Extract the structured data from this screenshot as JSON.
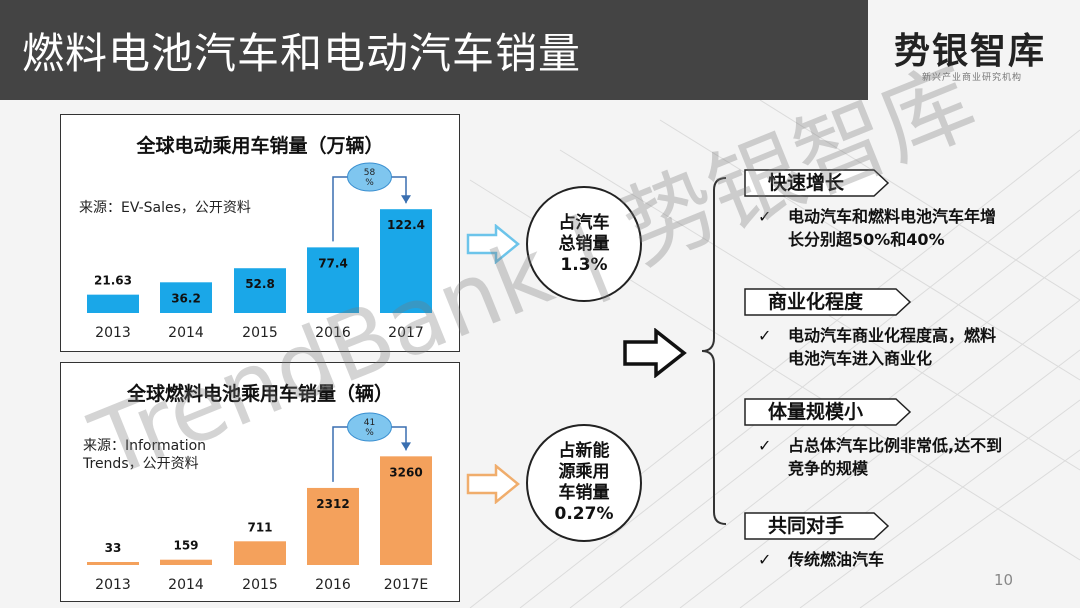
{
  "header": {
    "title": "燃料电池汽车和电动汽车销量",
    "logo_main": "势银智库",
    "logo_sub": "新兴产业商业研究机构"
  },
  "charts": {
    "ev": {
      "title": "全球电动乘用车销量（万辆）",
      "source": "来源：EV-Sales，公开资料",
      "growth_badge": "58\n%"
    },
    "fc": {
      "title": "全球燃料电池乘用车销量（辆）",
      "source": "来源：Information\nTrends，公开资料",
      "growth_badge": "41\n%"
    }
  },
  "chart_data": [
    {
      "type": "bar",
      "title": "全球电动乘用车销量（万辆）",
      "categories": [
        "2013",
        "2014",
        "2015",
        "2016",
        "2017"
      ],
      "values": [
        21.63,
        36.2,
        52.8,
        77.4,
        122.4
      ],
      "labels": [
        "21.63",
        "36.2",
        "52.8",
        "77.4",
        "122.4"
      ],
      "color": "#1aa7e8",
      "ylim": [
        0,
        125
      ]
    },
    {
      "type": "bar",
      "title": "全球燃料电池乘用车销量（辆）",
      "categories": [
        "2013",
        "2014",
        "2015",
        "2016",
        "2017E"
      ],
      "values": [
        33,
        159,
        711,
        2312,
        3260
      ],
      "labels": [
        "33",
        "159",
        "711",
        "2312",
        "3260"
      ],
      "color": "#f4a15c",
      "ylim": [
        0,
        3300
      ]
    }
  ],
  "circles": {
    "ev_share": "占汽车\n总销量\n1.3%",
    "fc_share": "占新能\n源乘用\n车销量\n0.27%"
  },
  "points": [
    {
      "tag": "快速增长",
      "text": "电动汽车和燃料电池汽车年增长分别超50%和40%"
    },
    {
      "tag": "商业化程度",
      "text": "电动汽车商业化程度高，燃料电池汽车进入商业化"
    },
    {
      "tag": "体量规模小",
      "text": "占总体汽车比例非常低,达不到竞争的规模"
    },
    {
      "tag": "共同对手",
      "text": "传统燃油汽车"
    }
  ],
  "check_mark": "✓",
  "watermark": "TrendBank | 势银智库",
  "page_number": "10"
}
